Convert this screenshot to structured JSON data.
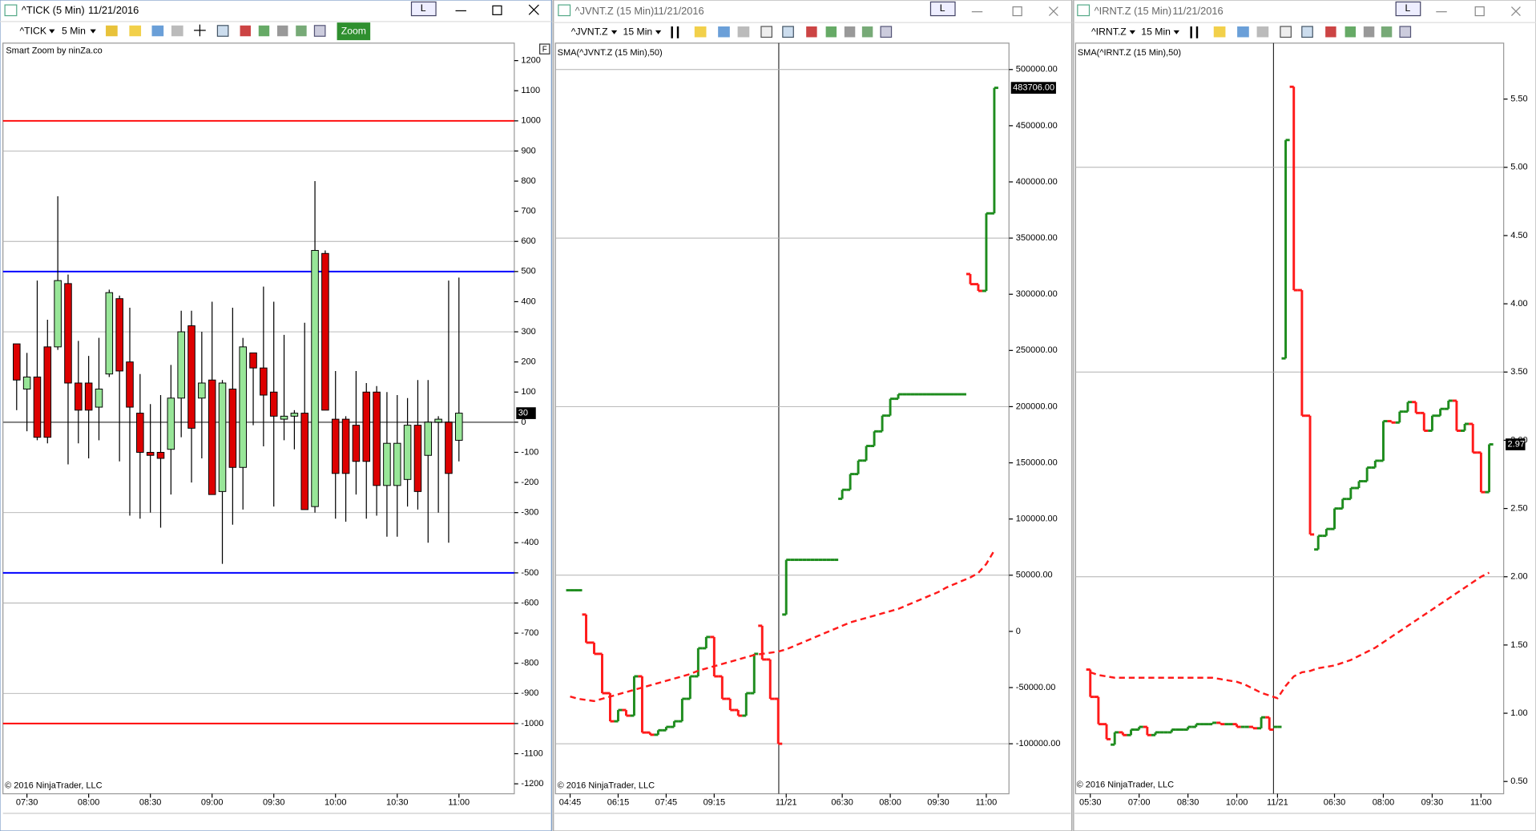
{
  "windows": [
    {
      "title": "^TICK (5 Min)",
      "date": "11/21/2016",
      "pin": "L",
      "instrument": "^TICK",
      "interval": "5 Min",
      "zoom": "Zoom",
      "panel_button": "F",
      "copyright": "© 2016 NinjaTrader, LLC"
    },
    {
      "title": "^JVNT.Z (15 Min)",
      "date": "11/21/2016",
      "pin": "L",
      "instrument": "^JVNT.Z",
      "interval": "15 Min",
      "copyright": "© 2016 NinjaTrader, LLC"
    },
    {
      "title": "^IRNT.Z (15 Min)",
      "date": "11/21/2016",
      "pin": "L",
      "instrument": "^IRNT.Z",
      "interval": "15 Min",
      "copyright": "© 2016 NinjaTrader, LLC"
    }
  ],
  "chart_data": [
    {
      "type": "candlestick",
      "annotation": "Smart Zoom by ninZa.co",
      "categories": [
        null,
        "07:30",
        null,
        null,
        null,
        null,
        null,
        "08:00",
        null,
        null,
        null,
        null,
        null,
        "08:30",
        null,
        null,
        null,
        null,
        null,
        "09:00",
        null,
        null,
        null,
        null,
        null,
        "09:30",
        null,
        null,
        null,
        null,
        null,
        "10:00",
        null,
        null,
        null,
        null,
        null,
        "10:30",
        null,
        null,
        null,
        null,
        null,
        "11:00"
      ],
      "open": [
        260,
        110,
        150,
        250,
        250,
        460,
        130,
        130,
        50,
        160,
        410,
        200,
        30,
        -100,
        -100,
        -90,
        80,
        320,
        80,
        140,
        -230,
        110,
        -150,
        230,
        180,
        100,
        10,
        20,
        30,
        -280,
        560,
        10,
        10,
        -10,
        100,
        100,
        -210,
        -210,
        -190,
        -10,
        -110,
        0,
        0,
        -60
      ],
      "high": [
        260,
        230,
        470,
        340,
        750,
        490,
        270,
        220,
        280,
        440,
        420,
        380,
        160,
        60,
        90,
        190,
        370,
        370,
        300,
        400,
        140,
        380,
        280,
        230,
        450,
        400,
        290,
        40,
        330,
        800,
        570,
        170,
        20,
        170,
        130,
        120,
        100,
        90,
        80,
        140,
        140,
        20,
        470,
        480
      ],
      "low": [
        40,
        -30,
        -60,
        -70,
        240,
        -140,
        -70,
        -120,
        -60,
        150,
        -130,
        -310,
        -320,
        -300,
        -350,
        -240,
        -50,
        -200,
        -120,
        -240,
        -470,
        -340,
        -290,
        -10,
        -80,
        -280,
        -60,
        -90,
        -290,
        -300,
        40,
        -320,
        -330,
        -240,
        -320,
        -310,
        -380,
        -380,
        -280,
        -290,
        -400,
        -300,
        -400,
        -130
      ],
      "close": [
        140,
        150,
        -50,
        -50,
        470,
        130,
        40,
        40,
        110,
        430,
        170,
        50,
        -100,
        -110,
        -120,
        80,
        300,
        -20,
        130,
        -240,
        130,
        -150,
        250,
        180,
        90,
        20,
        20,
        30,
        -290,
        570,
        40,
        -170,
        -170,
        -130,
        -130,
        -210,
        -70,
        -70,
        -10,
        -230,
        0,
        10,
        -170,
        30
      ],
      "up_color": "#98e698",
      "down_color": "#dd0000",
      "ylim": [
        -1233,
        1258
      ],
      "yticks": [
        -1200,
        -1100,
        -1000,
        -900,
        -800,
        -700,
        -600,
        -500,
        -400,
        -300,
        -200,
        -100,
        0,
        100,
        200,
        300,
        400,
        500,
        600,
        700,
        800,
        900,
        1000,
        1100,
        1200
      ],
      "grid_lines": [
        900,
        600,
        300,
        -300,
        -600,
        -900
      ],
      "levels": [
        {
          "value": 1000,
          "color": "#ff0000"
        },
        {
          "value": 500,
          "color": "#0000ff"
        },
        {
          "value": 0,
          "color": "#808080"
        },
        {
          "value": -500,
          "color": "#0000ff"
        },
        {
          "value": -1000,
          "color": "#ff0000"
        }
      ],
      "last_value": 30
    },
    {
      "type": "ohlc",
      "categories": [
        "04:45",
        null,
        null,
        null,
        null,
        null,
        "06:15",
        null,
        null,
        null,
        null,
        null,
        "07:45",
        null,
        null,
        null,
        null,
        null,
        "09:15",
        null,
        null,
        null,
        null,
        null,
        null,
        null,
        null,
        "11/21",
        null,
        null,
        null,
        null,
        null,
        null,
        "06:30",
        null,
        null,
        null,
        null,
        null,
        "08:00",
        null,
        null,
        null,
        null,
        null,
        "09:30",
        null,
        null,
        null,
        null,
        null,
        "11:00",
        null
      ],
      "open": [
        36600,
        36600,
        15000,
        -10000,
        -20000,
        -55000,
        -80000,
        -70000,
        -75000,
        -40000,
        -90000,
        -92000,
        -88000,
        -85000,
        -80000,
        -60000,
        -40000,
        -15000,
        -5000,
        -40000,
        -60000,
        -70000,
        -75000,
        -55000,
        5000,
        -25000,
        -60000,
        15000,
        63700,
        63700,
        63700,
        63700,
        63700,
        63700,
        118000,
        126000,
        140000,
        152000,
        165000,
        178000,
        192000,
        207000,
        211000,
        211000,
        211000,
        211000,
        211000,
        211000,
        211000,
        211000,
        318000,
        309000,
        303000,
        372000
      ],
      "close": [
        36600,
        36600,
        -10000,
        -20000,
        -55000,
        -80000,
        -70000,
        -75000,
        -40000,
        -90000,
        -92000,
        -88000,
        -85000,
        -80000,
        -60000,
        -40000,
        -15000,
        -5000,
        -40000,
        -60000,
        -70000,
        -75000,
        -55000,
        -20000,
        -25000,
        -60000,
        -100000,
        63700,
        63700,
        63700,
        63700,
        63700,
        63700,
        63700,
        126000,
        140000,
        152000,
        165000,
        178000,
        192000,
        207000,
        211000,
        211000,
        211000,
        211000,
        211000,
        211000,
        211000,
        211000,
        211000,
        309000,
        303000,
        372000,
        483706
      ],
      "up_color": "#1e8c1e",
      "down_color": "#ff1a1a",
      "series": [
        {
          "name": "SMA(^JVNT.Z (15 Min),50)",
          "color": "#ff1a1a",
          "values": [
            -58000,
            -60000,
            -61000,
            -62000,
            -60000,
            -58000,
            -56000,
            -54000,
            -52000,
            -50000,
            -48000,
            -46000,
            -44000,
            -42000,
            -40000,
            -38000,
            -35000,
            -33000,
            -31000,
            -29000,
            -27000,
            -25000,
            -23000,
            -21000,
            -20000,
            -19000,
            -18000,
            -16000,
            -13000,
            -10000,
            -7000,
            -4000,
            -1000,
            2000,
            5000,
            8000,
            10000,
            12000,
            14000,
            16000,
            18000,
            20000,
            23000,
            26000,
            29000,
            32000,
            35000,
            39000,
            42000,
            45000,
            48000,
            52000,
            60000,
            72000
          ]
        }
      ],
      "ylim": [
        -144500,
        523500
      ],
      "yticks": [
        {
          "value": -100000,
          "label": "-100000.00"
        },
        {
          "value": -50000,
          "label": "-50000.00"
        },
        0,
        {
          "value": 50000,
          "label": "50000.00"
        },
        {
          "value": 100000,
          "label": "100000.00"
        },
        {
          "value": 150000,
          "label": "150000.00"
        },
        {
          "value": 200000,
          "label": "200000.00"
        },
        {
          "value": 250000,
          "label": "250000.00"
        },
        {
          "value": 300000,
          "label": "300000.00"
        },
        {
          "value": 350000,
          "label": "350000.00"
        },
        {
          "value": 400000,
          "label": "400000.00"
        },
        {
          "value": 450000,
          "label": "450000.00"
        },
        {
          "value": 500000,
          "label": "500000.00"
        }
      ],
      "grid_lines": [
        500000,
        350000,
        200000,
        50000,
        -100000
      ],
      "last_value": 483706,
      "last_value_label": "483706.00"
    },
    {
      "type": "ohlc",
      "categories": [
        "05:30",
        null,
        null,
        null,
        null,
        null,
        "07:00",
        null,
        null,
        null,
        null,
        null,
        "08:30",
        null,
        null,
        null,
        null,
        null,
        "10:00",
        null,
        null,
        null,
        null,
        "11/21",
        null,
        null,
        null,
        null,
        null,
        null,
        "06:30",
        null,
        null,
        null,
        null,
        null,
        "08:00",
        null,
        null,
        null,
        null,
        null,
        "09:30",
        null,
        null,
        null,
        null,
        null,
        "11:00",
        null
      ],
      "open": [
        1.32,
        1.12,
        0.92,
        0.77,
        0.86,
        0.84,
        0.88,
        0.9,
        0.84,
        0.86,
        0.86,
        0.88,
        0.88,
        0.9,
        0.92,
        0.92,
        0.93,
        0.92,
        0.92,
        0.9,
        0.9,
        0.89,
        0.97,
        0.9,
        3.6,
        5.59,
        4.1,
        3.18,
        2.2,
        2.3,
        2.35,
        2.5,
        2.57,
        2.65,
        2.7,
        2.8,
        2.85,
        3.14,
        3.13,
        3.21,
        3.28,
        3.2,
        3.07,
        3.18,
        3.23,
        3.29,
        3.07,
        3.12,
        2.91,
        2.62
      ],
      "close": [
        1.12,
        0.92,
        0.81,
        0.86,
        0.84,
        0.88,
        0.9,
        0.84,
        0.86,
        0.86,
        0.88,
        0.88,
        0.9,
        0.92,
        0.92,
        0.93,
        0.92,
        0.92,
        0.9,
        0.9,
        0.89,
        0.97,
        0.88,
        0.9,
        5.2,
        4.1,
        3.18,
        2.31,
        2.3,
        2.35,
        2.5,
        2.57,
        2.65,
        2.7,
        2.8,
        2.85,
        3.14,
        3.13,
        3.21,
        3.28,
        3.2,
        3.07,
        3.18,
        3.23,
        3.29,
        3.07,
        3.12,
        2.91,
        2.62,
        2.97
      ],
      "up_color": "#1e8c1e",
      "down_color": "#ff1a1a",
      "series": [
        {
          "name": "SMA(^IRNT.Z (15 Min),50)",
          "color": "#ff1a1a",
          "values": [
            1.3,
            1.28,
            1.27,
            1.26,
            1.26,
            1.26,
            1.26,
            1.26,
            1.26,
            1.26,
            1.26,
            1.26,
            1.26,
            1.26,
            1.26,
            1.26,
            1.25,
            1.24,
            1.23,
            1.21,
            1.18,
            1.15,
            1.13,
            1.11,
            1.2,
            1.27,
            1.3,
            1.31,
            1.33,
            1.34,
            1.35,
            1.37,
            1.39,
            1.42,
            1.45,
            1.48,
            1.52,
            1.56,
            1.6,
            1.64,
            1.68,
            1.72,
            1.76,
            1.8,
            1.84,
            1.88,
            1.92,
            1.96,
            2.0,
            2.03
          ]
        }
      ],
      "ylim": [
        0.41,
        5.91
      ],
      "yticks": [
        {
          "value": 0.5,
          "label": "0.50"
        },
        {
          "value": 1,
          "label": "1.00"
        },
        {
          "value": 1.5,
          "label": "1.50"
        },
        {
          "value": 2,
          "label": "2.00"
        },
        {
          "value": 2.5,
          "label": "2.50"
        },
        {
          "value": 3,
          "label": "3.00"
        },
        {
          "value": 3.5,
          "label": "3.50"
        },
        {
          "value": 4,
          "label": "4.00"
        },
        {
          "value": 4.5,
          "label": "4.50"
        },
        {
          "value": 5,
          "label": "5.00"
        },
        {
          "value": 5.5,
          "label": "5.50"
        }
      ],
      "grid_lines": [
        5,
        3.5,
        2
      ],
      "last_value": 2.97
    }
  ]
}
